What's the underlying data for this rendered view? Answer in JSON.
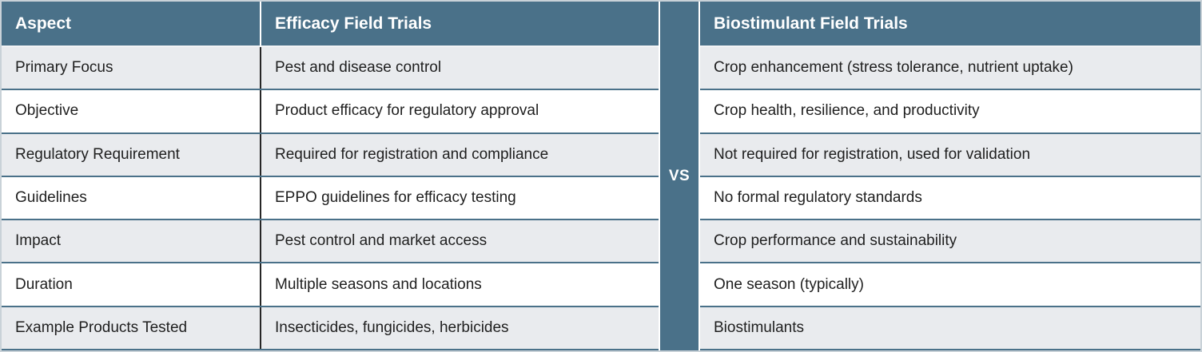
{
  "colors": {
    "slate_header": "#4a7189",
    "row_alt": "#e9ebee",
    "row_plain": "#ffffff",
    "divider_dark": "#262626",
    "header_text": "#ffffff",
    "body_text": "#1f1f1f"
  },
  "vs_label": "VS",
  "left_table": {
    "header_aspect": "Aspect",
    "header_value": "Efficacy Field Trials",
    "rows": [
      {
        "aspect": "Primary Focus",
        "value": "Pest and disease control"
      },
      {
        "aspect": "Objective",
        "value": "Product efficacy for regulatory approval"
      },
      {
        "aspect": "Regulatory Requirement",
        "value": "Required for registration and compliance"
      },
      {
        "aspect": "Guidelines",
        "value": "EPPO guidelines for efficacy testing"
      },
      {
        "aspect": "Impact",
        "value": "Pest control and market access"
      },
      {
        "aspect": "Duration",
        "value": "Multiple seasons and locations"
      },
      {
        "aspect": "Example Products Tested",
        "value": "Insecticides, fungicides, herbicides"
      }
    ]
  },
  "right_table": {
    "header": "Biostimulant Field Trials",
    "rows": [
      {
        "value": "Crop enhancement (stress tolerance, nutrient uptake)"
      },
      {
        "value": "Crop health, resilience, and productivity"
      },
      {
        "value": "Not required for registration, used for validation"
      },
      {
        "value": "No formal regulatory standards"
      },
      {
        "value": "Crop performance and sustainability"
      },
      {
        "value": "One season (typically)"
      },
      {
        "value": "Biostimulants"
      }
    ]
  },
  "chart_data": {
    "type": "table",
    "title": "Efficacy Field Trials vs Biostimulant Field Trials",
    "columns": [
      "Aspect",
      "Efficacy Field Trials",
      "Biostimulant Field Trials"
    ],
    "rows": [
      [
        "Primary Focus",
        "Pest and disease control",
        "Crop enhancement (stress tolerance, nutrient uptake)"
      ],
      [
        "Objective",
        "Product efficacy for regulatory approval",
        "Crop health, resilience, and productivity"
      ],
      [
        "Regulatory Requirement",
        "Required for registration and compliance",
        "Not required for registration, used for validation"
      ],
      [
        "Guidelines",
        "EPPO guidelines for efficacy testing",
        "No formal regulatory standards"
      ],
      [
        "Impact",
        "Pest control and market access",
        "Crop performance and sustainability"
      ],
      [
        "Duration",
        "Multiple seasons and locations",
        "One season (typically)"
      ],
      [
        "Example Products Tested",
        "Insecticides, fungicides, herbicides",
        "Biostimulants"
      ]
    ]
  }
}
